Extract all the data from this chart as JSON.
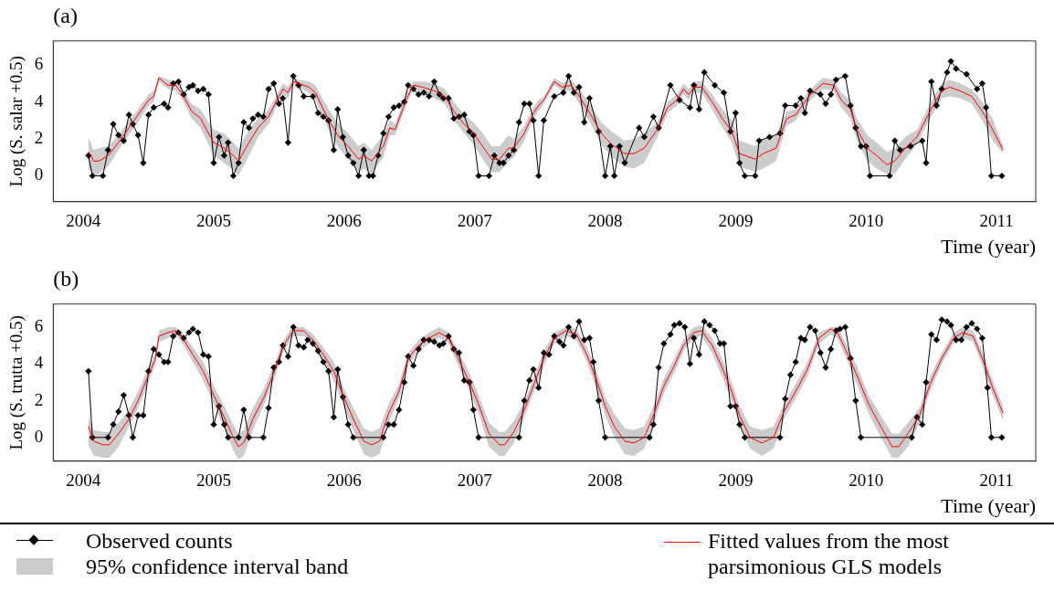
{
  "chart_data": [
    {
      "type": "line",
      "title": "(a)",
      "xlabel": "Time (year)",
      "ylabel": "Log (S. salar +0.5)",
      "xlim": [
        2003.77,
        2011.3
      ],
      "ylim": [
        -1.4,
        7.3
      ],
      "xticks": [
        2004,
        2005,
        2006,
        2007,
        2008,
        2009,
        2010,
        2011
      ],
      "yticks": [
        0,
        2,
        4,
        6
      ],
      "grid": false,
      "series": [
        {
          "color": "#000000",
          "marker": "diamond",
          "line_style": "solid",
          "x": [
            2004.04,
            2004.07,
            2004.15,
            2004.19,
            2004.23,
            2004.27,
            2004.31,
            2004.35,
            2004.38,
            2004.42,
            2004.46,
            2004.5,
            2004.54,
            2004.62,
            2004.65,
            2004.69,
            2004.73,
            2004.77,
            2004.81,
            2004.84,
            2004.88,
            2004.92,
            2004.96,
            2005,
            2005.04,
            2005.08,
            2005.11,
            2005.15,
            2005.19,
            2005.23,
            2005.27,
            2005.3,
            2005.34,
            2005.38,
            2005.42,
            2005.46,
            2005.5,
            2005.53,
            2005.57,
            2005.61,
            2005.65,
            2005.69,
            2005.76,
            2005.8,
            2005.84,
            2005.88,
            2005.92,
            2005.95,
            2005.99,
            2006.03,
            2006.07,
            2006.11,
            2006.15,
            2006.19,
            2006.22,
            2006.26,
            2006.3,
            2006.34,
            2006.38,
            2006.42,
            2006.46,
            2006.49,
            2006.53,
            2006.57,
            2006.61,
            2006.65,
            2006.69,
            2006.73,
            2006.76,
            2006.8,
            2006.84,
            2006.88,
            2006.92,
            2006.96,
            2006.99,
            2007.03,
            2007.11,
            2007.15,
            2007.19,
            2007.22,
            2007.26,
            2007.3,
            2007.34,
            2007.38,
            2007.42,
            2007.45,
            2007.49,
            2007.53,
            2007.61,
            2007.68,
            2007.72,
            2007.76,
            2007.8,
            2007.84,
            2007.88,
            2007.95,
            2008,
            2008.04,
            2008.07,
            2008.11,
            2008.15,
            2008.26,
            2008.3,
            2008.37,
            2008.41,
            2008.5,
            2008.57,
            2008.65,
            2008.68,
            2008.72,
            2008.76,
            2008.84,
            2008.91,
            2008.96,
            2009,
            2009.03,
            2009.07,
            2009.15,
            2009.18,
            2009.26,
            2009.34,
            2009.38,
            2009.46,
            2009.5,
            2009.53,
            2009.57,
            2009.65,
            2009.69,
            2009.73,
            2009.77,
            2009.84,
            2009.88,
            2009.92,
            2009.96,
            2010,
            2010.03,
            2010.18,
            2010.22,
            2010.26,
            2010.34,
            2010.43,
            2010.46,
            2010.5,
            2010.54,
            2010.58,
            2010.62,
            2010.65,
            2010.69,
            2010.77,
            2010.85,
            2010.89,
            2010.92,
            2010.96,
            2011.04
          ],
          "values": [
            1.1,
            0,
            0,
            1.4,
            2.8,
            2.2,
            1.9,
            3.3,
            2.8,
            2.2,
            0.7,
            3.3,
            3.7,
            3.9,
            3.7,
            5.0,
            5.1,
            4.4,
            4.8,
            4.9,
            4.6,
            4.7,
            4.4,
            0.7,
            2.1,
            1.1,
            1.8,
            0,
            0.7,
            2.9,
            2.6,
            3.1,
            3.3,
            3.2,
            4.7,
            5.0,
            3.9,
            4.2,
            1.8,
            5.4,
            4.9,
            4.3,
            4.3,
            3.4,
            3.2,
            3.0,
            1.4,
            3.6,
            2.1,
            1.1,
            0.7,
            0,
            1.4,
            0,
            0,
            1.1,
            2.3,
            3.2,
            3.7,
            3.8,
            4.0,
            4.9,
            4.7,
            4.4,
            4.5,
            4.3,
            5.1,
            4.4,
            4.2,
            4.2,
            3.1,
            3.2,
            3.3,
            2.4,
            2.2,
            0,
            0,
            1.1,
            0.7,
            0.7,
            1.1,
            1.4,
            2.9,
            3.9,
            3.9,
            3.0,
            0,
            3.0,
            4.3,
            4.5,
            5.4,
            4.5,
            4.8,
            2.9,
            4.2,
            2.4,
            0,
            1.6,
            0,
            1.6,
            0.7,
            2.6,
            2.1,
            3.2,
            2.6,
            4.9,
            4.1,
            3.7,
            4.9,
            3.6,
            5.6,
            4.9,
            4.5,
            2.4,
            3.4,
            0.7,
            0,
            0,
            1.9,
            2.1,
            2.3,
            3.8,
            3.8,
            4.2,
            3.4,
            4.6,
            4.4,
            3.9,
            4.4,
            5.2,
            5.4,
            3.8,
            2.6,
            1.6,
            1.6,
            0,
            0,
            1.9,
            1.4,
            1.6,
            1.9,
            0.7,
            5.1,
            3.8,
            4.7,
            5.6,
            6.2,
            5.8,
            5.5,
            4.7,
            5.0,
            3.7,
            0,
            0
          ]
        },
        {
          "color": "#ff0000",
          "marker": "none",
          "line_style": "solid",
          "x": [
            2004.04,
            2004.08,
            2004.12,
            2004.19,
            2004.27,
            2004.35,
            2004.42,
            2004.5,
            2004.54,
            2004.58,
            2004.65,
            2004.71,
            2004.77,
            2004.83,
            2004.9,
            2004.96,
            2005.0,
            2005.08,
            2005.15,
            2005.19,
            2005.27,
            2005.34,
            2005.42,
            2005.5,
            2005.53,
            2005.57,
            2005.61,
            2005.65,
            2005.73,
            2005.78,
            2005.84,
            2005.9,
            2005.96,
            2006.03,
            2006.11,
            2006.15,
            2006.21,
            2006.3,
            2006.35,
            2006.39,
            2006.48,
            2006.53,
            2006.6,
            2006.69,
            2006.77,
            2006.84,
            2006.92,
            2006.99,
            2007.07,
            2007.13,
            2007.19,
            2007.26,
            2007.3,
            2007.38,
            2007.45,
            2007.49,
            2007.53,
            2007.61,
            2007.67,
            2007.74,
            2007.82,
            2007.89,
            2007.97,
            2008.05,
            2008.15,
            2008.22,
            2008.3,
            2008.4,
            2008.48,
            2008.55,
            2008.6,
            2008.64,
            2008.68,
            2008.74,
            2008.82,
            2008.89,
            2008.97,
            2009.03,
            2009.15,
            2009.21,
            2009.31,
            2009.39,
            2009.46,
            2009.56,
            2009.67,
            2009.75,
            2009.81,
            2009.88,
            2009.93,
            2010.01,
            2010.08,
            2010.16,
            2010.22,
            2010.3,
            2010.39,
            2010.49,
            2010.58,
            2010.64,
            2010.72,
            2010.81,
            2010.89,
            2010.97,
            2011.05
          ],
          "values": [
            1.3,
            0.8,
            0.8,
            1.1,
            1.8,
            2.6,
            3.3,
            4.1,
            4.3,
            5.3,
            4.9,
            4.9,
            4.3,
            3.5,
            3.1,
            2.3,
            1.8,
            1.5,
            1.1,
            0.8,
            1.8,
            2.6,
            3.2,
            4.3,
            4.7,
            4.5,
            5.1,
            5.0,
            4.8,
            4.5,
            3.6,
            2.8,
            2.1,
            1.6,
            0.9,
            1.1,
            0.8,
            1.6,
            2.6,
            2.5,
            4.2,
            4.9,
            4.8,
            4.6,
            4.3,
            3.5,
            2.8,
            2.3,
            1.5,
            0.9,
            0.9,
            1.5,
            1.5,
            2.3,
            3.4,
            3.8,
            4.1,
            5.1,
            4.8,
            4.9,
            4.1,
            3.3,
            2.3,
            1.7,
            1.2,
            1.2,
            1.5,
            2.5,
            3.7,
            4.1,
            4.7,
            4.4,
            4.8,
            4.8,
            4.0,
            3.2,
            2.4,
            1.2,
            0.9,
            1.2,
            1.5,
            3.1,
            3.3,
            4.3,
            5.0,
            4.9,
            4.1,
            3.6,
            2.5,
            1.5,
            1.1,
            0.6,
            0.8,
            1.5,
            2.1,
            3.5,
            4.6,
            4.8,
            4.6,
            4.3,
            3.5,
            2.5,
            1.4
          ],
          "lower": [
            0.4,
            0.0,
            0.1,
            0.5,
            1.4,
            2.2,
            2.9,
            3.8,
            4.0,
            5.1,
            4.7,
            4.6,
            4.0,
            3.1,
            2.6,
            1.7,
            1.1,
            0.7,
            0.3,
            0.0,
            1.1,
            2.1,
            2.8,
            4.0,
            4.4,
            4.2,
            4.9,
            4.8,
            4.5,
            4.1,
            3.1,
            2.2,
            1.5,
            0.9,
            0.2,
            0.4,
            0.1,
            1.0,
            2.2,
            2.2,
            3.9,
            4.7,
            4.5,
            4.2,
            3.9,
            3.0,
            2.3,
            1.7,
            0.8,
            0.2,
            0.2,
            0.8,
            1.0,
            1.9,
            3.1,
            3.5,
            3.9,
            4.9,
            4.6,
            4.6,
            3.7,
            2.8,
            1.7,
            1.0,
            0.5,
            0.4,
            0.7,
            2.1,
            3.4,
            3.8,
            4.4,
            4.1,
            4.5,
            4.5,
            3.6,
            2.7,
            1.8,
            0.5,
            0.2,
            0.4,
            0.8,
            2.7,
            3.0,
            4.0,
            4.7,
            4.6,
            3.7,
            3.1,
            1.9,
            0.8,
            0.4,
            0.1,
            0.1,
            0.9,
            1.7,
            3.1,
            4.2,
            4.3,
            4.2,
            3.9,
            3.0,
            1.9,
            1.2
          ],
          "upper": [
            2.1,
            1.4,
            1.5,
            1.6,
            2.2,
            3.0,
            3.6,
            4.4,
            4.6,
            5.4,
            5.2,
            5.1,
            4.6,
            3.9,
            3.6,
            2.9,
            2.5,
            2.3,
            1.8,
            1.5,
            2.5,
            3.1,
            3.6,
            4.6,
            5.0,
            4.8,
            5.3,
            5.2,
            5.1,
            4.9,
            4.1,
            3.4,
            2.8,
            2.3,
            1.6,
            1.8,
            1.4,
            2.2,
            3.0,
            2.8,
            4.5,
            5.1,
            5.1,
            5.0,
            4.7,
            4.0,
            3.3,
            2.9,
            2.2,
            1.6,
            1.6,
            2.2,
            2.0,
            2.7,
            3.7,
            4.1,
            4.3,
            5.3,
            5.0,
            5.2,
            4.5,
            3.8,
            2.9,
            2.4,
            1.9,
            2.0,
            2.3,
            2.9,
            4.0,
            4.4,
            5.0,
            4.7,
            5.1,
            5.1,
            4.4,
            3.7,
            3.0,
            1.9,
            1.6,
            2.0,
            2.2,
            3.5,
            3.6,
            4.6,
            5.3,
            5.2,
            4.5,
            4.1,
            3.1,
            2.2,
            1.8,
            1.3,
            1.5,
            2.1,
            2.5,
            3.9,
            5.0,
            5.2,
            5.0,
            4.7,
            4.0,
            3.1,
            1.6
          ]
        }
      ]
    },
    {
      "type": "line",
      "title": "(b)",
      "xlabel": "Time (year)",
      "ylabel": "Log (S. trutta +0.5)",
      "xlim": [
        2003.77,
        2011.3
      ],
      "ylim": [
        -1.29,
        7.25
      ],
      "xticks": [
        2004,
        2005,
        2006,
        2007,
        2008,
        2009,
        2010,
        2011
      ],
      "yticks": [
        0,
        2,
        4,
        6
      ],
      "grid": false,
      "legend": "bottom",
      "annotations": [
        "95% confidence interval band"
      ],
      "series": [
        {
          "name": "Observed counts",
          "color": "#000000",
          "marker": "diamond",
          "line_style": "solid",
          "x": [
            2004.04,
            2004.07,
            2004.19,
            2004.23,
            2004.27,
            2004.31,
            2004.35,
            2004.38,
            2004.42,
            2004.46,
            2004.5,
            2004.54,
            2004.58,
            2004.62,
            2004.65,
            2004.69,
            2004.73,
            2004.77,
            2004.81,
            2004.84,
            2004.88,
            2004.92,
            2004.96,
            2005,
            2005.04,
            2005.08,
            2005.11,
            2005.19,
            2005.23,
            2005.27,
            2005.38,
            2005.42,
            2005.46,
            2005.5,
            2005.53,
            2005.57,
            2005.61,
            2005.65,
            2005.69,
            2005.72,
            2005.76,
            2005.8,
            2005.84,
            2005.88,
            2005.92,
            2005.95,
            2005.99,
            2006.03,
            2006.07,
            2006.3,
            2006.34,
            2006.38,
            2006.42,
            2006.46,
            2006.49,
            2006.53,
            2006.57,
            2006.61,
            2006.65,
            2006.69,
            2006.73,
            2006.76,
            2006.8,
            2006.84,
            2006.88,
            2006.92,
            2006.96,
            2006.99,
            2007.03,
            2007.34,
            2007.38,
            2007.42,
            2007.45,
            2007.49,
            2007.53,
            2007.57,
            2007.61,
            2007.65,
            2007.68,
            2007.72,
            2007.76,
            2007.8,
            2007.84,
            2007.88,
            2007.91,
            2007.95,
            2008,
            2008.34,
            2008.37,
            2008.41,
            2008.45,
            2008.5,
            2008.53,
            2008.57,
            2008.61,
            2008.65,
            2008.68,
            2008.72,
            2008.76,
            2008.8,
            2008.84,
            2008.88,
            2008.91,
            2008.96,
            2009,
            2009.03,
            2009.07,
            2009.34,
            2009.38,
            2009.42,
            2009.46,
            2009.5,
            2009.53,
            2009.57,
            2009.61,
            2009.65,
            2009.69,
            2009.73,
            2009.77,
            2009.8,
            2009.84,
            2009.88,
            2009.92,
            2009.96,
            2010.35,
            2010.39,
            2010.43,
            2010.46,
            2010.5,
            2010.54,
            2010.58,
            2010.62,
            2010.65,
            2010.69,
            2010.73,
            2010.77,
            2010.81,
            2010.85,
            2010.89,
            2010.93,
            2010.96,
            2011.04
          ],
          "values": [
            3.6,
            0,
            0,
            0.7,
            1.4,
            2.3,
            1.2,
            0,
            1.2,
            1.2,
            3.6,
            4.8,
            4.5,
            4.1,
            4.1,
            5.5,
            5.7,
            5.4,
            5.7,
            5.9,
            5.7,
            4.5,
            4.4,
            0.7,
            1.7,
            0.7,
            0,
            0,
            1.5,
            0,
            0,
            1.6,
            3.8,
            4.1,
            5.0,
            4.4,
            6.0,
            5.0,
            4.9,
            5.3,
            5.1,
            4.7,
            4.1,
            3.6,
            1.1,
            3.7,
            2.2,
            0.7,
            0,
            0,
            0.7,
            0.7,
            1.5,
            3.0,
            4.4,
            3.9,
            4.8,
            5.3,
            5.3,
            5.2,
            5.0,
            5.1,
            5.5,
            4.8,
            4.6,
            3.1,
            3.0,
            1.5,
            0,
            0,
            2.0,
            3.1,
            3.7,
            2.7,
            4.6,
            4.5,
            5.5,
            5.2,
            5.0,
            6.0,
            5.5,
            6.3,
            5.3,
            5.4,
            4.1,
            2.0,
            0,
            0,
            0.7,
            3.8,
            5.1,
            5.6,
            6.1,
            6.2,
            6.0,
            4.0,
            5.4,
            4.5,
            6.3,
            6.1,
            5.8,
            5.1,
            5.1,
            1.7,
            1.7,
            0.7,
            0,
            0,
            2.1,
            3.4,
            4.1,
            5.4,
            5.3,
            6.0,
            5.8,
            4.6,
            3.8,
            4.8,
            5.8,
            5.9,
            6.0,
            4.3,
            2.0,
            0,
            0,
            1.1,
            0.7,
            3.0,
            5.6,
            5.3,
            6.4,
            6.3,
            6.1,
            5.3,
            5.3,
            6.0,
            6.2,
            5.9,
            5.4,
            2.7,
            0,
            0
          ]
        },
        {
          "name": "Fitted values from the most parsimonious GLS models",
          "color": "#ff0000",
          "marker": "none",
          "line_style": "solid",
          "x": [
            2004.04,
            2004.08,
            2004.15,
            2004.2,
            2004.27,
            2004.35,
            2004.42,
            2004.5,
            2004.55,
            2004.58,
            2004.65,
            2004.71,
            2004.77,
            2004.84,
            2004.92,
            2005.0,
            2005.08,
            2005.15,
            2005.19,
            2005.23,
            2005.3,
            2005.38,
            2005.46,
            2005.53,
            2005.58,
            2005.61,
            2005.69,
            2005.76,
            2005.84,
            2005.92,
            2005.99,
            2006.07,
            2006.15,
            2006.21,
            2006.27,
            2006.34,
            2006.42,
            2006.49,
            2006.57,
            2006.65,
            2006.73,
            2006.8,
            2006.88,
            2006.96,
            2007.03,
            2007.11,
            2007.19,
            2007.23,
            2007.3,
            2007.38,
            2007.45,
            2007.53,
            2007.61,
            2007.7,
            2007.78,
            2007.86,
            2007.93,
            2008.0,
            2008.07,
            2008.15,
            2008.22,
            2008.3,
            2008.37,
            2008.45,
            2008.53,
            2008.6,
            2008.68,
            2008.74,
            2008.82,
            2008.89,
            2008.96,
            2009.03,
            2009.11,
            2009.2,
            2009.29,
            2009.37,
            2009.46,
            2009.55,
            2009.64,
            2009.73,
            2009.78,
            2009.86,
            2009.94,
            2010.02,
            2010.12,
            2010.2,
            2010.25,
            2010.32,
            2010.41,
            2010.49,
            2010.58,
            2010.67,
            2010.74,
            2010.82,
            2010.89,
            2010.97,
            2011.05
          ],
          "values": [
            0.6,
            -0.2,
            -0.4,
            -0.4,
            0.2,
            1.0,
            2.0,
            3.4,
            4.2,
            5.5,
            5.7,
            5.8,
            5.3,
            4.5,
            3.6,
            2.3,
            1.1,
            0,
            -0.5,
            -0.3,
            1.0,
            2.1,
            3.5,
            4.9,
            5.5,
            5.8,
            5.8,
            5.3,
            4.5,
            3.6,
            2.3,
            1.0,
            -0.2,
            -0.4,
            -0.2,
            1.3,
            2.5,
            4.3,
            5.0,
            5.4,
            5.7,
            5.4,
            4.2,
            3.0,
            1.8,
            0.2,
            -0.4,
            -0.4,
            0.3,
            1.5,
            2.8,
            4.3,
            5.4,
            5.8,
            5.6,
            4.5,
            3.2,
            1.7,
            0.6,
            -0.2,
            -0.3,
            0,
            1.2,
            2.8,
            3.9,
            5.0,
            5.7,
            5.8,
            5.0,
            3.9,
            2.7,
            1.2,
            0,
            -0.3,
            0,
            1.4,
            2.5,
            3.7,
            5.4,
            5.9,
            5.7,
            4.5,
            3.2,
            1.8,
            0.5,
            -0.5,
            -0.5,
            0.2,
            1.2,
            2.9,
            4.3,
            5.4,
            5.7,
            5.5,
            4.3,
            2.7,
            1.3
          ],
          "lower": [
            -0.4,
            -1.0,
            -1.1,
            -1.1,
            -0.5,
            0.6,
            1.6,
            3.0,
            3.9,
            5.2,
            5.4,
            5.6,
            5.0,
            4.1,
            3.1,
            1.8,
            0.5,
            -0.7,
            -1.2,
            -1.0,
            0.4,
            1.7,
            3.1,
            4.6,
            5.2,
            5.5,
            5.5,
            5.0,
            4.1,
            3.1,
            1.8,
            0.4,
            -0.9,
            -1.1,
            -0.9,
            0.8,
            2.1,
            4.0,
            4.7,
            5.1,
            5.4,
            5.1,
            3.8,
            2.5,
            1.3,
            -0.5,
            -1.0,
            -1.0,
            -0.3,
            1.1,
            2.4,
            3.9,
            5.1,
            5.5,
            5.3,
            4.1,
            2.7,
            1.2,
            0.0,
            -0.9,
            -1.0,
            -0.6,
            0.7,
            2.4,
            3.5,
            4.7,
            5.4,
            5.5,
            4.6,
            3.4,
            2.2,
            0.7,
            -0.6,
            -1.0,
            -0.6,
            1.0,
            2.1,
            3.3,
            5.1,
            5.6,
            5.4,
            4.1,
            2.7,
            1.3,
            -0.1,
            -1.1,
            -1.1,
            -0.5,
            0.8,
            2.5,
            4.0,
            5.1,
            5.4,
            5.2,
            3.9,
            2.3,
            0.9
          ],
          "upper": [
            1.2,
            0.4,
            0.3,
            0.3,
            0.8,
            1.5,
            2.5,
            3.8,
            4.5,
            5.8,
            6.0,
            6.0,
            5.6,
            4.9,
            4.1,
            2.8,
            1.7,
            0.7,
            0.2,
            0.4,
            1.6,
            2.6,
            3.9,
            5.2,
            5.8,
            6.0,
            6.0,
            5.6,
            4.9,
            4.1,
            2.8,
            1.6,
            0.5,
            0.3,
            0.5,
            1.8,
            2.9,
            4.6,
            5.3,
            5.7,
            6.0,
            5.7,
            4.6,
            3.5,
            2.3,
            0.8,
            0.3,
            0.3,
            0.9,
            1.9,
            3.2,
            4.7,
            5.7,
            6.0,
            5.9,
            4.9,
            3.7,
            2.2,
            1.3,
            0.5,
            0.4,
            0.6,
            1.7,
            3.2,
            4.3,
            5.3,
            6.0,
            6.1,
            5.4,
            4.4,
            3.2,
            1.7,
            0.6,
            0.4,
            0.6,
            1.8,
            2.9,
            4.1,
            5.7,
            6.0,
            6.0,
            4.9,
            3.7,
            2.3,
            1.1,
            0.2,
            0.2,
            0.8,
            1.6,
            3.3,
            4.6,
            5.7,
            6.0,
            5.8,
            4.7,
            3.1,
            1.7
          ]
        }
      ]
    }
  ]
}
